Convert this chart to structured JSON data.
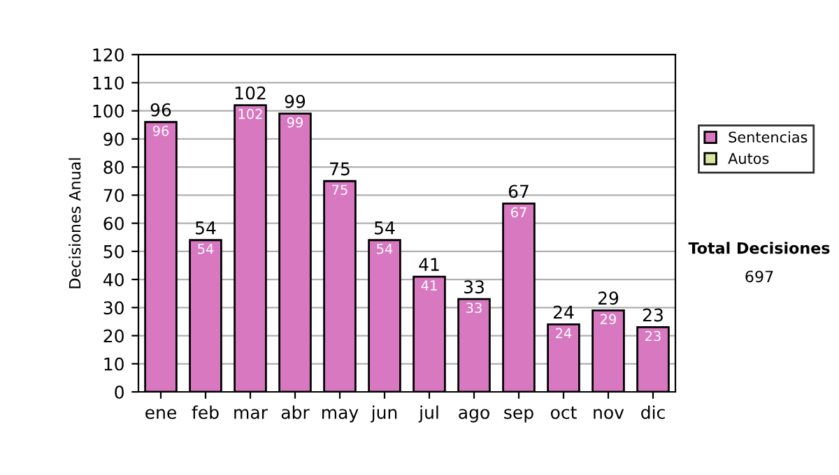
{
  "chart_data": {
    "type": "bar",
    "ylabel": "Decisiones Anual",
    "categories": [
      "ene",
      "feb",
      "mar",
      "abr",
      "may",
      "jun",
      "jul",
      "ago",
      "sep",
      "oct",
      "nov",
      "dic"
    ],
    "stacked": true,
    "series": [
      {
        "name": "Sentencias",
        "color": "#d878c0",
        "values": [
          96,
          54,
          102,
          99,
          75,
          54,
          41,
          33,
          67,
          24,
          29,
          23
        ],
        "value_labels": [
          "96",
          "54",
          "102",
          "99",
          "75",
          "54",
          "41",
          "33",
          "67",
          "24",
          "29",
          "23"
        ]
      },
      {
        "name": "Autos",
        "color": "#d8e8a0",
        "values": [
          0,
          0,
          0,
          0,
          0,
          0,
          0,
          0,
          0,
          0,
          0,
          0
        ]
      }
    ],
    "totals": [
      "96",
      "54",
      "102",
      "99",
      "75",
      "54",
      "41",
      "33",
      "67",
      "24",
      "29",
      "23"
    ],
    "ylim": [
      0,
      120
    ],
    "yticks": [
      0,
      10,
      20,
      30,
      40,
      50,
      60,
      70,
      80,
      90,
      100,
      110,
      120
    ],
    "grid": "y",
    "legend": "right",
    "annotations": [
      "Total Decisiones",
      "697"
    ]
  }
}
